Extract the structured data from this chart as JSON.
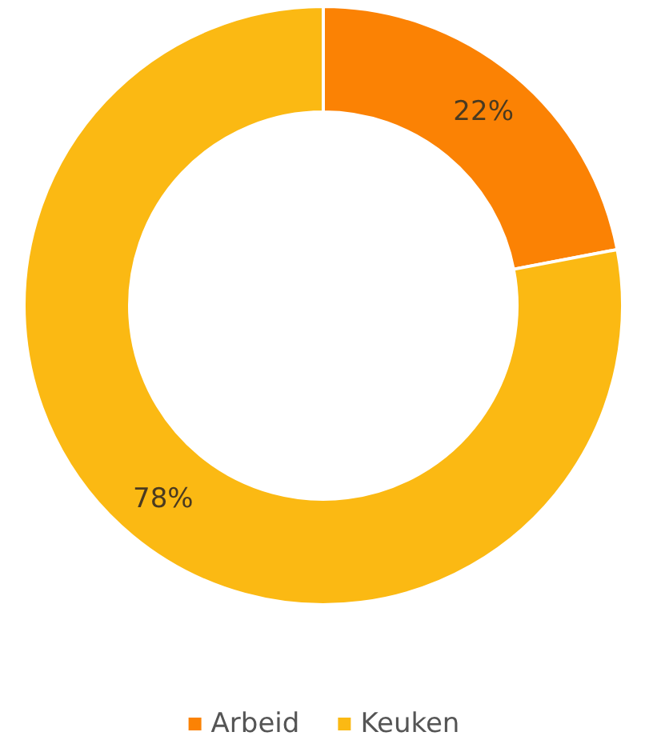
{
  "chart_data": {
    "type": "donut",
    "categories": [
      "Arbeid",
      "Keuken"
    ],
    "values": [
      22,
      78
    ],
    "colors": [
      "#fb8204",
      "#fbb913"
    ],
    "value_labels": [
      "22%",
      "78%"
    ],
    "legend": "bottom"
  }
}
